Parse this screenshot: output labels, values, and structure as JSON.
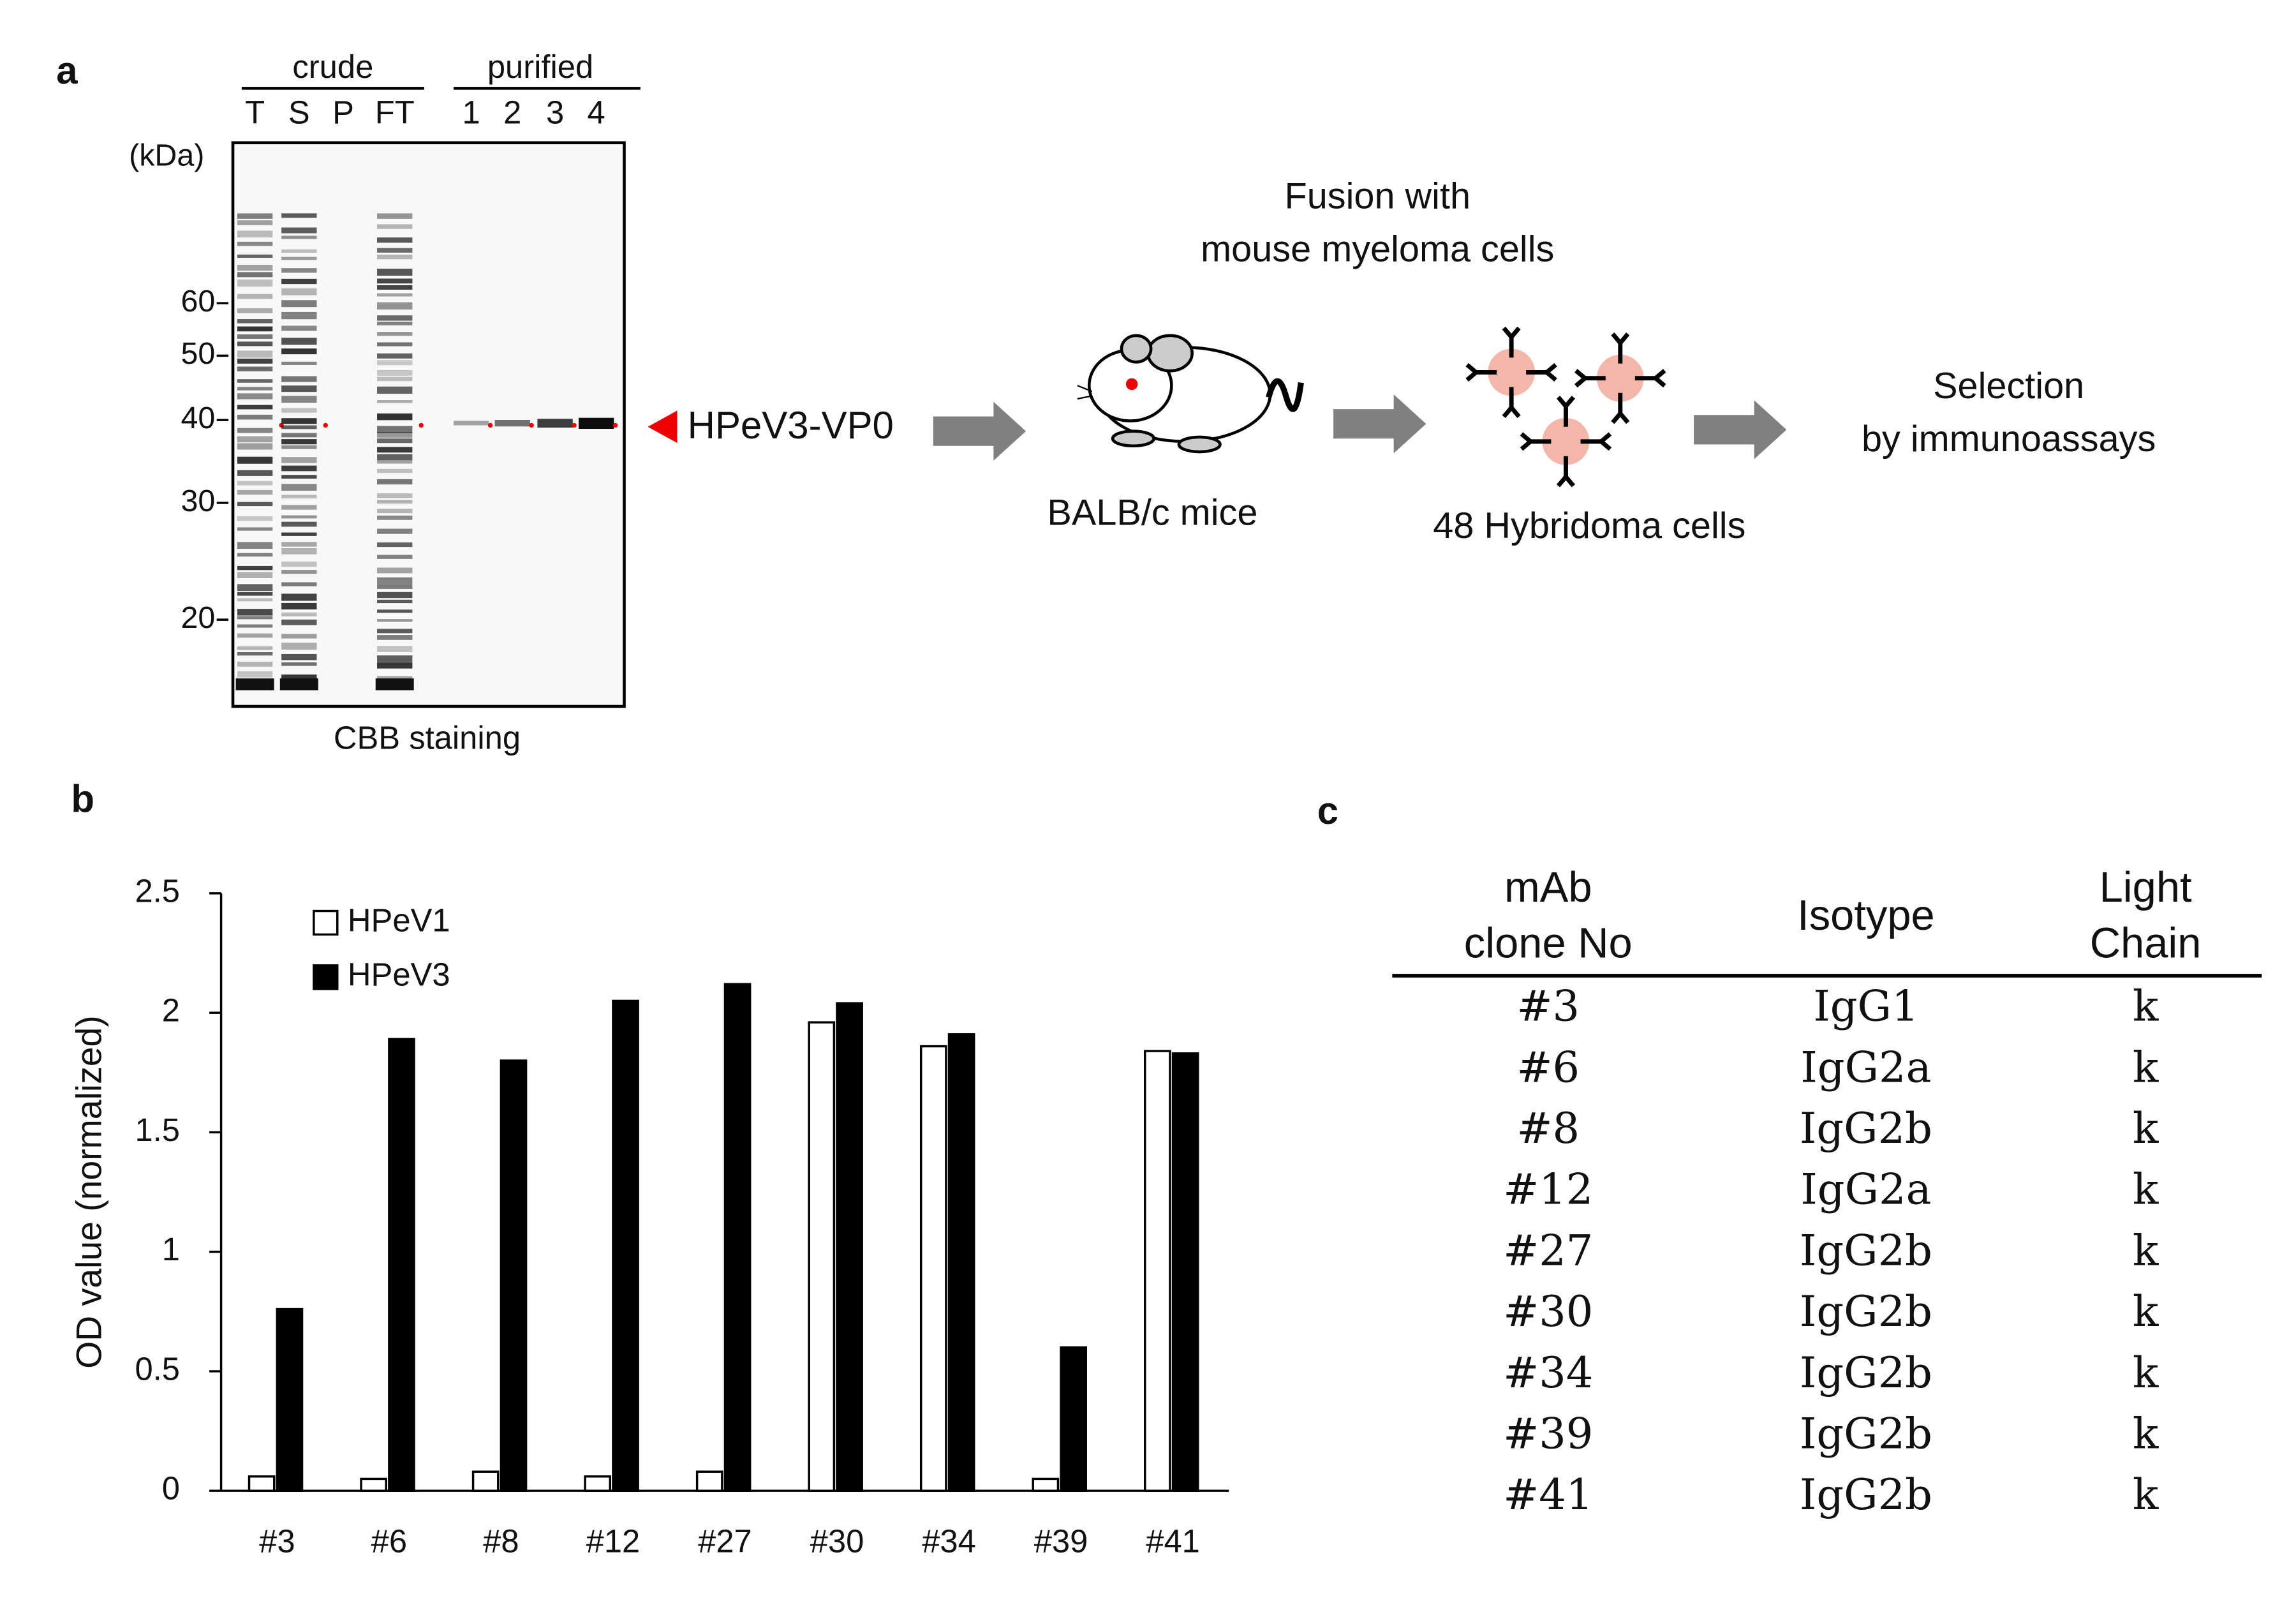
{
  "panel_labels": [
    "a",
    "b",
    "c"
  ],
  "gel": {
    "groups": [
      "crude",
      "purified"
    ],
    "lanes": [
      "T",
      "S",
      "P",
      "FT",
      "1",
      "2",
      "3",
      "4"
    ],
    "unit": "(kDa)",
    "markers": [
      60,
      50,
      40,
      30,
      20
    ],
    "caption": "CBB staining",
    "arrow_label": "HPeV3-VP0"
  },
  "flow": {
    "fusion": [
      "Fusion with",
      "mouse myeloma cells"
    ],
    "mice": "BALB/c mice",
    "hybridoma": "48 Hybridoma cells",
    "selection": [
      "Selection",
      "by immunoassays"
    ]
  },
  "chart_data": {
    "type": "bar",
    "ylabel": "OD value (normalized)",
    "categories": [
      "#3",
      "#6",
      "#8",
      "#12",
      "#27",
      "#30",
      "#34",
      "#39",
      "#41"
    ],
    "series": [
      {
        "name": "HPeV1",
        "color": "#ffffff",
        "values": [
          0.06,
          0.05,
          0.08,
          0.06,
          0.08,
          1.96,
          1.86,
          0.05,
          1.84
        ]
      },
      {
        "name": "HPeV3",
        "color": "#000000",
        "values": [
          0.76,
          1.89,
          1.8,
          2.05,
          2.12,
          2.04,
          1.91,
          0.6,
          1.83
        ]
      }
    ],
    "ylim": [
      0,
      2.5
    ],
    "yticks": [
      0,
      0.5,
      1,
      1.5,
      2,
      2.5
    ],
    "grid": false,
    "legend": "upper left"
  },
  "table": {
    "header": [
      [
        "mAb",
        "clone No"
      ],
      [
        "Isotype"
      ],
      [
        "Light",
        "Chain"
      ]
    ],
    "rows": [
      [
        "#3",
        "IgG1",
        "k"
      ],
      [
        "#6",
        "IgG2a",
        "k"
      ],
      [
        "#8",
        "IgG2b",
        "k"
      ],
      [
        "#12",
        "IgG2a",
        "k"
      ],
      [
        "#27",
        "IgG2b",
        "k"
      ],
      [
        "#30",
        "IgG2b",
        "k"
      ],
      [
        "#34",
        "IgG2b",
        "k"
      ],
      [
        "#39",
        "IgG2b",
        "k"
      ],
      [
        "#41",
        "IgG2b",
        "k"
      ]
    ]
  }
}
